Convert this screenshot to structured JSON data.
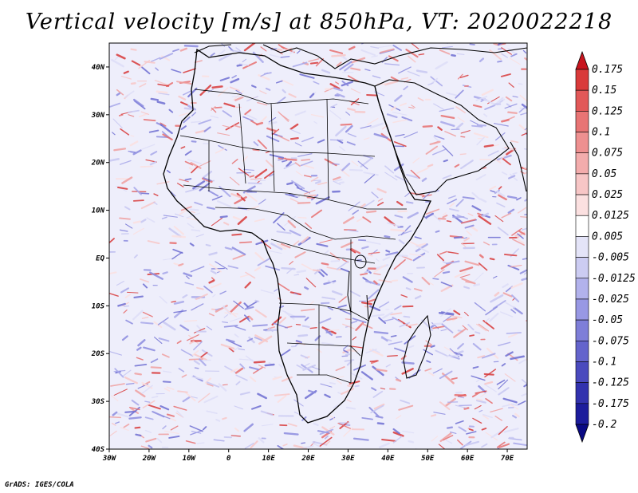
{
  "title": "Vertical velocity [m/s] at 850hPa, VT: 2020022218",
  "credit": "GrADS: IGES/COLA",
  "map": {
    "lon_labels": [
      "30W",
      "20W",
      "10W",
      "0",
      "10E",
      "20E",
      "30E",
      "40E",
      "50E",
      "60E",
      "70E"
    ],
    "lat_labels": [
      "40N",
      "30N",
      "20N",
      "10N",
      "EQ",
      "10S",
      "20S",
      "30S",
      "40S"
    ],
    "lon_range": [
      -30,
      75
    ],
    "lat_range": [
      -40,
      45
    ]
  },
  "colorbar": {
    "labels": [
      "0.175",
      "0.15",
      "0.125",
      "0.1",
      "0.075",
      "0.05",
      "0.025",
      "0.0125",
      "0.005",
      "-0.005",
      "-0.0125",
      "-0.025",
      "-0.05",
      "-0.075",
      "-0.1",
      "-0.125",
      "-0.175",
      "-0.2"
    ],
    "colors": [
      "#c8141e",
      "#d93a3a",
      "#e25858",
      "#e87474",
      "#ee9090",
      "#f3acac",
      "#f7c6c6",
      "#fbe0e0",
      "#ffffff",
      "#e4e4f8",
      "#ccccf2",
      "#b2b2ec",
      "#9898e4",
      "#7e7ed8",
      "#6464cc",
      "#4a4abe",
      "#3232ae",
      "#1c1c9c",
      "#0a0a84"
    ]
  }
}
